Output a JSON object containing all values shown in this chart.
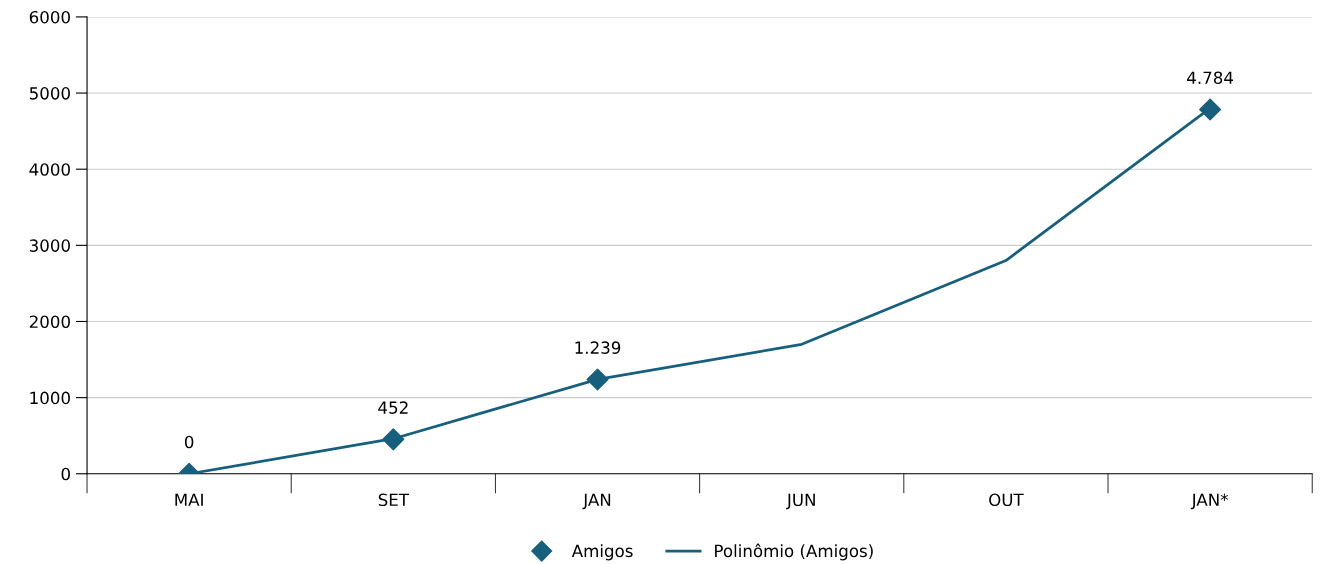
{
  "chart_data": {
    "type": "line",
    "categories": [
      "MAI",
      "SET",
      "JAN",
      "JUN",
      "OUT",
      "JAN*"
    ],
    "series": [
      {
        "name": "Amigos",
        "type": "scatter",
        "marker": "diamond",
        "color": "#17607d",
        "values": [
          0,
          452,
          1239,
          null,
          null,
          4784
        ],
        "value_labels": [
          "0",
          "452",
          "1.239",
          null,
          null,
          "4.784"
        ]
      },
      {
        "name": "Polinômio (Amigos)",
        "marker": "none",
        "color": "#17607d",
        "values": [
          0,
          460,
          1240,
          1700,
          2800,
          4800
        ]
      }
    ],
    "ylim": [
      0,
      6000
    ],
    "yticks": [
      0,
      1000,
      2000,
      3000,
      4000,
      5000,
      6000
    ],
    "grid": "y",
    "legend": "bottom"
  }
}
